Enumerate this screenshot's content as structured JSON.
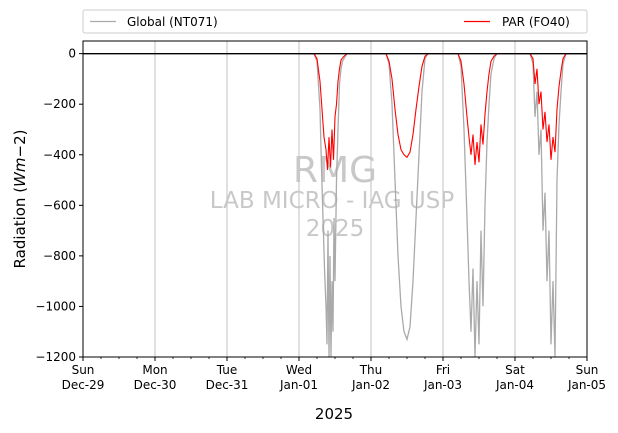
{
  "chart_data": {
    "type": "line",
    "xlabel": "2025",
    "ylabel": "Radiation ($Wm{-}2$)",
    "ylim": [
      -1200,
      50
    ],
    "xlim": [
      "2024-12-29",
      "2025-01-05"
    ],
    "yticks": [
      0,
      -200,
      -400,
      -600,
      -800,
      -1000,
      -1200
    ],
    "xticks": [
      {
        "date": "2024-12-29",
        "day": "Sun",
        "label": "Dec-29"
      },
      {
        "date": "2024-12-30",
        "day": "Mon",
        "label": "Dec-30"
      },
      {
        "date": "2024-12-31",
        "day": "Tue",
        "label": "Dec-31"
      },
      {
        "date": "2025-01-01",
        "day": "Wed",
        "label": "Jan-01"
      },
      {
        "date": "2025-01-02",
        "day": "Thu",
        "label": "Jan-02"
      },
      {
        "date": "2025-01-03",
        "day": "Fri",
        "label": "Jan-03"
      },
      {
        "date": "2025-01-04",
        "day": "Sat",
        "label": "Jan-04"
      },
      {
        "date": "2025-01-05",
        "day": "Sun",
        "label": "Jan-05"
      }
    ],
    "grid": "vertical",
    "legend": {
      "placement": "top-outside",
      "columns": 2
    },
    "series": [
      {
        "name": "Global (NT071)",
        "color": "#aaaaaa",
        "points": [
          [
            "2025-01-01 00:00",
            0
          ],
          [
            "2025-01-01 05:00",
            0
          ],
          [
            "2025-01-01 06:00",
            -30
          ],
          [
            "2025-01-01 07:00",
            -220
          ],
          [
            "2025-01-01 07:30",
            -450
          ],
          [
            "2025-01-01 08:00",
            -650
          ],
          [
            "2025-01-01 08:30",
            -850
          ],
          [
            "2025-01-01 09:00",
            -1000
          ],
          [
            "2025-01-01 09:20",
            -1150
          ],
          [
            "2025-01-01 09:40",
            -700
          ],
          [
            "2025-01-01 10:00",
            -1200
          ],
          [
            "2025-01-01 10:20",
            -800
          ],
          [
            "2025-01-01 10:40",
            -1200
          ],
          [
            "2025-01-01 11:00",
            -900
          ],
          [
            "2025-01-01 11:20",
            -1100
          ],
          [
            "2025-01-01 11:40",
            -650
          ],
          [
            "2025-01-01 12:00",
            -900
          ],
          [
            "2025-01-01 12:30",
            -500
          ],
          [
            "2025-01-01 13:00",
            -300
          ],
          [
            "2025-01-01 13:30",
            -120
          ],
          [
            "2025-01-01 14:00",
            -60
          ],
          [
            "2025-01-01 14:30",
            -30
          ],
          [
            "2025-01-01 15:00",
            -20
          ],
          [
            "2025-01-01 16:00",
            0
          ],
          [
            "2025-01-02 05:00",
            0
          ],
          [
            "2025-01-02 06:00",
            -40
          ],
          [
            "2025-01-02 07:00",
            -200
          ],
          [
            "2025-01-02 08:00",
            -500
          ],
          [
            "2025-01-02 09:00",
            -800
          ],
          [
            "2025-01-02 10:00",
            -1000
          ],
          [
            "2025-01-02 11:00",
            -1100
          ],
          [
            "2025-01-02 12:00",
            -1130
          ],
          [
            "2025-01-02 13:00",
            -1080
          ],
          [
            "2025-01-02 14:00",
            -900
          ],
          [
            "2025-01-02 15:00",
            -650
          ],
          [
            "2025-01-02 16:00",
            -400
          ],
          [
            "2025-01-02 17:00",
            -150
          ],
          [
            "2025-01-02 18:00",
            -20
          ],
          [
            "2025-01-02 19:00",
            0
          ],
          [
            "2025-01-03 05:00",
            0
          ],
          [
            "2025-01-03 06:00",
            -50
          ],
          [
            "2025-01-03 07:00",
            -300
          ],
          [
            "2025-01-03 08:00",
            -650
          ],
          [
            "2025-01-03 08:40",
            -900
          ],
          [
            "2025-01-03 09:20",
            -1100
          ],
          [
            "2025-01-03 10:00",
            -850
          ],
          [
            "2025-01-03 10:40",
            -1200
          ],
          [
            "2025-01-03 11:20",
            -900
          ],
          [
            "2025-01-03 12:00",
            -1150
          ],
          [
            "2025-01-03 12:40",
            -700
          ],
          [
            "2025-01-03 13:20",
            -1000
          ],
          [
            "2025-01-03 14:00",
            -600
          ],
          [
            "2025-01-03 14:40",
            -350
          ],
          [
            "2025-01-03 15:20",
            -200
          ],
          [
            "2025-01-03 16:00",
            -80
          ],
          [
            "2025-01-03 17:00",
            -20
          ],
          [
            "2025-01-03 18:00",
            0
          ],
          [
            "2025-01-04 05:00",
            0
          ],
          [
            "2025-01-04 06:00",
            -40
          ],
          [
            "2025-01-04 06:40",
            -250
          ],
          [
            "2025-01-04 07:20",
            -150
          ],
          [
            "2025-01-04 08:00",
            -400
          ],
          [
            "2025-01-04 08:40",
            -300
          ],
          [
            "2025-01-04 09:20",
            -700
          ],
          [
            "2025-01-04 10:00",
            -550
          ],
          [
            "2025-01-04 10:40",
            -900
          ],
          [
            "2025-01-04 11:20",
            -700
          ],
          [
            "2025-01-04 12:00",
            -1150
          ],
          [
            "2025-01-04 12:40",
            -900
          ],
          [
            "2025-01-04 13:20",
            -1200
          ],
          [
            "2025-01-04 14:00",
            -500
          ],
          [
            "2025-01-04 14:40",
            -280
          ],
          [
            "2025-01-04 15:20",
            -150
          ],
          [
            "2025-01-04 16:00",
            -40
          ],
          [
            "2025-01-04 17:00",
            0
          ],
          [
            "2025-01-05 00:00",
            0
          ]
        ]
      },
      {
        "name": "PAR (FO40)",
        "color": "#ff0000",
        "points": [
          [
            "2025-01-01 00:00",
            0
          ],
          [
            "2025-01-01 05:00",
            0
          ],
          [
            "2025-01-01 06:00",
            -20
          ],
          [
            "2025-01-01 07:00",
            -110
          ],
          [
            "2025-01-01 07:40",
            -220
          ],
          [
            "2025-01-01 08:20",
            -330
          ],
          [
            "2025-01-01 09:00",
            -380
          ],
          [
            "2025-01-01 09:30",
            -460
          ],
          [
            "2025-01-01 10:00",
            -330
          ],
          [
            "2025-01-01 10:30",
            -450
          ],
          [
            "2025-01-01 11:00",
            -300
          ],
          [
            "2025-01-01 11:30",
            -420
          ],
          [
            "2025-01-01 12:00",
            -250
          ],
          [
            "2025-01-01 12:30",
            -200
          ],
          [
            "2025-01-01 13:00",
            -110
          ],
          [
            "2025-01-01 13:30",
            -60
          ],
          [
            "2025-01-01 14:00",
            -25
          ],
          [
            "2025-01-01 15:00",
            -10
          ],
          [
            "2025-01-01 16:00",
            0
          ],
          [
            "2025-01-02 05:00",
            0
          ],
          [
            "2025-01-02 06:00",
            -30
          ],
          [
            "2025-01-02 07:00",
            -100
          ],
          [
            "2025-01-02 08:00",
            -220
          ],
          [
            "2025-01-02 09:00",
            -320
          ],
          [
            "2025-01-02 10:00",
            -380
          ],
          [
            "2025-01-02 11:00",
            -400
          ],
          [
            "2025-01-02 12:00",
            -410
          ],
          [
            "2025-01-02 13:00",
            -390
          ],
          [
            "2025-01-02 14:00",
            -320
          ],
          [
            "2025-01-02 15:00",
            -220
          ],
          [
            "2025-01-02 16:00",
            -130
          ],
          [
            "2025-01-02 17:00",
            -50
          ],
          [
            "2025-01-02 18:00",
            -10
          ],
          [
            "2025-01-02 19:00",
            0
          ],
          [
            "2025-01-03 05:00",
            0
          ],
          [
            "2025-01-03 06:00",
            -30
          ],
          [
            "2025-01-03 07:00",
            -120
          ],
          [
            "2025-01-03 08:00",
            -250
          ],
          [
            "2025-01-03 08:40",
            -330
          ],
          [
            "2025-01-03 09:20",
            -400
          ],
          [
            "2025-01-03 10:00",
            -320
          ],
          [
            "2025-01-03 10:40",
            -440
          ],
          [
            "2025-01-03 11:20",
            -350
          ],
          [
            "2025-01-03 12:00",
            -430
          ],
          [
            "2025-01-03 12:40",
            -280
          ],
          [
            "2025-01-03 13:20",
            -360
          ],
          [
            "2025-01-03 14:00",
            -240
          ],
          [
            "2025-01-03 14:40",
            -150
          ],
          [
            "2025-01-03 15:20",
            -80
          ],
          [
            "2025-01-03 16:00",
            -30
          ],
          [
            "2025-01-03 17:00",
            -10
          ],
          [
            "2025-01-03 18:00",
            0
          ],
          [
            "2025-01-04 05:00",
            0
          ],
          [
            "2025-01-04 06:00",
            -20
          ],
          [
            "2025-01-04 06:40",
            -120
          ],
          [
            "2025-01-04 07:20",
            -60
          ],
          [
            "2025-01-04 08:00",
            -200
          ],
          [
            "2025-01-04 08:40",
            -150
          ],
          [
            "2025-01-04 09:20",
            -300
          ],
          [
            "2025-01-04 10:00",
            -230
          ],
          [
            "2025-01-04 10:40",
            -350
          ],
          [
            "2025-01-04 11:20",
            -280
          ],
          [
            "2025-01-04 12:00",
            -420
          ],
          [
            "2025-01-04 12:40",
            -330
          ],
          [
            "2025-01-04 13:20",
            -390
          ],
          [
            "2025-01-04 14:00",
            -220
          ],
          [
            "2025-01-04 14:40",
            -130
          ],
          [
            "2025-01-04 15:20",
            -70
          ],
          [
            "2025-01-04 16:00",
            -20
          ],
          [
            "2025-01-04 17:00",
            0
          ],
          [
            "2025-01-05 00:00",
            0
          ]
        ]
      }
    ],
    "watermark": {
      "lines": [
        "RMG",
        "LAB MICRO - IAG USP",
        "2025"
      ],
      "color": "#c8c8c8"
    }
  }
}
